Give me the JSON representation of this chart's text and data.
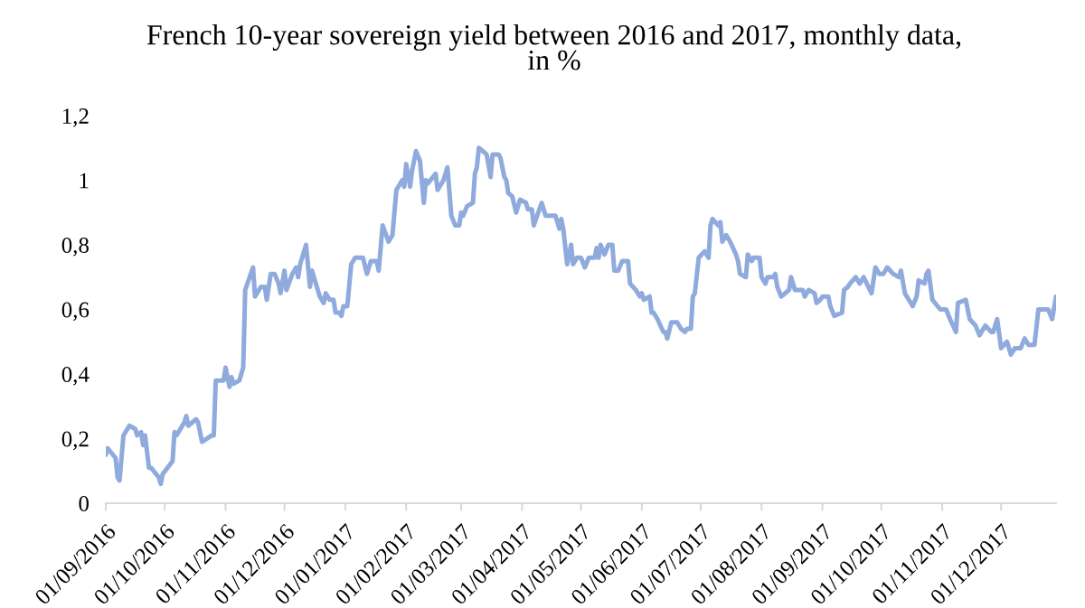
{
  "chart_data": {
    "type": "line",
    "title": "French 10-year sovereign yield between 2016 and 2017, monthly data,\nin %",
    "x": [
      "2016-09-01",
      "2016-09-02",
      "2016-09-06",
      "2016-09-07",
      "2016-09-08",
      "2016-09-10",
      "2016-09-13",
      "2016-09-16",
      "2016-09-17",
      "2016-09-19",
      "2016-09-20",
      "2016-09-21",
      "2016-09-23",
      "2016-09-24",
      "2016-09-28",
      "2016-09-29",
      "2016-09-30",
      "2016-10-05",
      "2016-10-06",
      "2016-10-07",
      "2016-10-11",
      "2016-10-12",
      "2016-10-13",
      "2016-10-17",
      "2016-10-18",
      "2016-10-20",
      "2016-10-25",
      "2016-10-26",
      "2016-10-27",
      "2016-10-31",
      "2016-11-01",
      "2016-11-03",
      "2016-11-04",
      "2016-11-05",
      "2016-11-08",
      "2016-11-10",
      "2016-11-11",
      "2016-11-15",
      "2016-11-16",
      "2016-11-18",
      "2016-11-19",
      "2016-11-21",
      "2016-11-22",
      "2016-11-24",
      "2016-11-26",
      "2016-11-28",
      "2016-11-29",
      "2016-12-01",
      "2016-12-02",
      "2016-12-05",
      "2016-12-07",
      "2016-12-08",
      "2016-12-09",
      "2016-12-12",
      "2016-12-14",
      "2016-12-15",
      "2016-12-19",
      "2016-12-21",
      "2016-12-22",
      "2016-12-24",
      "2016-12-26",
      "2016-12-27",
      "2016-12-29",
      "2016-12-30",
      "2016-12-31",
      "2017-01-02",
      "2017-01-04",
      "2017-01-06",
      "2017-01-10",
      "2017-01-12",
      "2017-01-14",
      "2017-01-17",
      "2017-01-18",
      "2017-01-20",
      "2017-01-23",
      "2017-01-25",
      "2017-01-27",
      "2017-01-29",
      "2017-01-30",
      "2017-01-31",
      "2017-02-01",
      "2017-02-03",
      "2017-02-04",
      "2017-02-06",
      "2017-02-08",
      "2017-02-10",
      "2017-02-11",
      "2017-02-12",
      "2017-02-16",
      "2017-02-17",
      "2017-02-19",
      "2017-02-20",
      "2017-02-22",
      "2017-02-24",
      "2017-02-26",
      "2017-02-28",
      "2017-03-01",
      "2017-03-02",
      "2017-03-04",
      "2017-03-07",
      "2017-03-08",
      "2017-03-09",
      "2017-03-10",
      "2017-03-14",
      "2017-03-16",
      "2017-03-17",
      "2017-03-20",
      "2017-03-21",
      "2017-03-23",
      "2017-03-24",
      "2017-03-25",
      "2017-03-27",
      "2017-03-29",
      "2017-03-31",
      "2017-04-03",
      "2017-04-04",
      "2017-04-06",
      "2017-04-07",
      "2017-04-11",
      "2017-04-13",
      "2017-04-18",
      "2017-04-20",
      "2017-04-21",
      "2017-04-22",
      "2017-04-24",
      "2017-04-26",
      "2017-04-27",
      "2017-04-29",
      "2017-05-01",
      "2017-05-03",
      "2017-05-05",
      "2017-05-08",
      "2017-05-09",
      "2017-05-10",
      "2017-05-11",
      "2017-05-13",
      "2017-05-15",
      "2017-05-17",
      "2017-05-18",
      "2017-05-20",
      "2017-05-22",
      "2017-05-25",
      "2017-05-26",
      "2017-05-29",
      "2017-05-31",
      "2017-06-01",
      "2017-06-02",
      "2017-06-05",
      "2017-06-06",
      "2017-06-07",
      "2017-06-09",
      "2017-06-12",
      "2017-06-13",
      "2017-06-14",
      "2017-06-16",
      "2017-06-19",
      "2017-06-21",
      "2017-06-23",
      "2017-06-24",
      "2017-06-26",
      "2017-06-27",
      "2017-06-28",
      "2017-06-30",
      "2017-07-03",
      "2017-07-05",
      "2017-07-06",
      "2017-07-07",
      "2017-07-10",
      "2017-07-11",
      "2017-07-12",
      "2017-07-14",
      "2017-07-16",
      "2017-07-19",
      "2017-07-20",
      "2017-07-21",
      "2017-07-24",
      "2017-07-25",
      "2017-07-27",
      "2017-07-28",
      "2017-07-31",
      "2017-08-01",
      "2017-08-03",
      "2017-08-04",
      "2017-08-07",
      "2017-08-08",
      "2017-08-09",
      "2017-08-11",
      "2017-08-15",
      "2017-08-16",
      "2017-08-18",
      "2017-08-22",
      "2017-08-23",
      "2017-08-25",
      "2017-08-28",
      "2017-08-29",
      "2017-08-31",
      "2017-09-01",
      "2017-09-04",
      "2017-09-05",
      "2017-09-07",
      "2017-09-11",
      "2017-09-12",
      "2017-09-14",
      "2017-09-15",
      "2017-09-18",
      "2017-09-20",
      "2017-09-22",
      "2017-09-26",
      "2017-09-28",
      "2017-09-30",
      "2017-10-02",
      "2017-10-04",
      "2017-10-07",
      "2017-10-10",
      "2017-10-11",
      "2017-10-13",
      "2017-10-17",
      "2017-10-19",
      "2017-10-20",
      "2017-10-23",
      "2017-10-24",
      "2017-10-25",
      "2017-10-27",
      "2017-10-31",
      "2017-11-03",
      "2017-11-05",
      "2017-11-08",
      "2017-11-09",
      "2017-11-13",
      "2017-11-15",
      "2017-11-18",
      "2017-11-20",
      "2017-11-23",
      "2017-11-26",
      "2017-11-27",
      "2017-11-29",
      "2017-12-01",
      "2017-12-04",
      "2017-12-06",
      "2017-12-08",
      "2017-12-11",
      "2017-12-13",
      "2017-12-15",
      "2017-12-18",
      "2017-12-20",
      "2017-12-25",
      "2017-12-27",
      "2017-12-29"
    ],
    "series": [
      {
        "color": "#8faadc",
        "values": [
          0.15,
          0.17,
          0.14,
          0.08,
          0.07,
          0.21,
          0.24,
          0.23,
          0.21,
          0.22,
          0.18,
          0.21,
          0.11,
          0.11,
          0.08,
          0.06,
          0.09,
          0.13,
          0.22,
          0.21,
          0.25,
          0.27,
          0.24,
          0.26,
          0.25,
          0.19,
          0.21,
          0.21,
          0.38,
          0.38,
          0.42,
          0.36,
          0.39,
          0.37,
          0.38,
          0.42,
          0.66,
          0.73,
          0.64,
          0.66,
          0.67,
          0.67,
          0.63,
          0.71,
          0.71,
          0.68,
          0.65,
          0.72,
          0.66,
          0.71,
          0.73,
          0.7,
          0.74,
          0.8,
          0.67,
          0.72,
          0.64,
          0.62,
          0.65,
          0.63,
          0.63,
          0.59,
          0.59,
          0.58,
          0.61,
          0.61,
          0.74,
          0.76,
          0.76,
          0.71,
          0.75,
          0.75,
          0.72,
          0.86,
          0.81,
          0.83,
          0.97,
          0.99,
          1.0,
          0.98,
          1.05,
          0.98,
          1.03,
          1.09,
          1.06,
          0.93,
          1.0,
          0.99,
          1.02,
          0.97,
          0.99,
          1.0,
          1.04,
          0.89,
          0.86,
          0.86,
          0.9,
          0.89,
          0.92,
          0.93,
          1.02,
          1.04,
          1.1,
          1.08,
          1.01,
          1.08,
          1.08,
          1.07,
          1.01,
          1.0,
          0.96,
          0.95,
          0.9,
          0.94,
          0.93,
          0.91,
          0.91,
          0.86,
          0.93,
          0.89,
          0.89,
          0.85,
          0.88,
          0.85,
          0.74,
          0.8,
          0.74,
          0.76,
          0.76,
          0.73,
          0.76,
          0.76,
          0.79,
          0.76,
          0.8,
          0.77,
          0.8,
          0.8,
          0.72,
          0.72,
          0.75,
          0.75,
          0.68,
          0.66,
          0.64,
          0.65,
          0.63,
          0.64,
          0.59,
          0.59,
          0.57,
          0.53,
          0.53,
          0.51,
          0.56,
          0.56,
          0.54,
          0.53,
          0.54,
          0.54,
          0.64,
          0.65,
          0.76,
          0.78,
          0.76,
          0.86,
          0.88,
          0.86,
          0.87,
          0.81,
          0.83,
          0.81,
          0.77,
          0.75,
          0.71,
          0.7,
          0.77,
          0.75,
          0.76,
          0.76,
          0.7,
          0.68,
          0.7,
          0.7,
          0.71,
          0.67,
          0.64,
          0.66,
          0.7,
          0.66,
          0.66,
          0.64,
          0.66,
          0.65,
          0.62,
          0.63,
          0.64,
          0.64,
          0.61,
          0.58,
          0.59,
          0.66,
          0.67,
          0.68,
          0.7,
          0.68,
          0.7,
          0.65,
          0.73,
          0.71,
          0.71,
          0.73,
          0.71,
          0.7,
          0.72,
          0.65,
          0.61,
          0.64,
          0.69,
          0.68,
          0.71,
          0.72,
          0.63,
          0.6,
          0.6,
          0.57,
          0.53,
          0.62,
          0.63,
          0.57,
          0.55,
          0.52,
          0.55,
          0.53,
          0.53,
          0.57,
          0.48,
          0.5,
          0.46,
          0.48,
          0.48,
          0.51,
          0.49,
          0.49,
          0.6,
          0.6,
          0.57,
          0.64
        ]
      }
    ],
    "xlim": [
      "2016-09-01",
      "2017-12-29"
    ],
    "xticks": [
      {
        "value": "2016-09-01",
        "label": "01/09/2016"
      },
      {
        "value": "2016-10-01",
        "label": "01/10/2016"
      },
      {
        "value": "2016-11-01",
        "label": "01/11/2016"
      },
      {
        "value": "2016-12-01",
        "label": "01/12/2016"
      },
      {
        "value": "2017-01-01",
        "label": "01/01/2017"
      },
      {
        "value": "2017-02-01",
        "label": "01/02/2017"
      },
      {
        "value": "2017-03-01",
        "label": "01/03/2017"
      },
      {
        "value": "2017-04-01",
        "label": "01/04/2017"
      },
      {
        "value": "2017-05-01",
        "label": "01/05/2017"
      },
      {
        "value": "2017-06-01",
        "label": "01/06/2017"
      },
      {
        "value": "2017-07-01",
        "label": "01/07/2017"
      },
      {
        "value": "2017-08-01",
        "label": "01/08/2017"
      },
      {
        "value": "2017-09-01",
        "label": "01/09/2017"
      },
      {
        "value": "2017-10-01",
        "label": "01/10/2017"
      },
      {
        "value": "2017-11-01",
        "label": "01/11/2017"
      },
      {
        "value": "2017-12-01",
        "label": "01/12/2017"
      }
    ],
    "ylim": [
      0,
      1.2
    ],
    "yticks": [
      0,
      {
        "value": 0.2,
        "label": "0,2"
      },
      {
        "value": 0.4,
        "label": "0,4"
      },
      {
        "value": 0.6,
        "label": "0,6"
      },
      {
        "value": 0.8,
        "label": "0,8"
      },
      1,
      {
        "value": 1.2,
        "label": "1,2"
      }
    ],
    "line_style": "solid"
  }
}
